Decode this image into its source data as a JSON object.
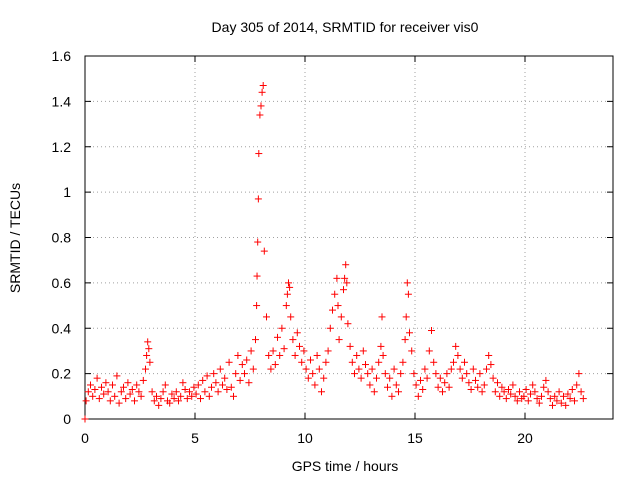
{
  "chart_data": {
    "type": "scatter",
    "title": "Day 305 of 2014, SRMTID for receiver vis0",
    "xlabel": "GPS time / hours",
    "ylabel": "SRMTID / TECUs",
    "xlim": [
      0,
      24
    ],
    "ylim": [
      0,
      1.6
    ],
    "xticks": [
      0,
      5,
      10,
      15,
      20
    ],
    "xtick_labels": [
      "0",
      "5",
      "10",
      "15",
      "20"
    ],
    "yticks": [
      0,
      0.2,
      0.4,
      0.6,
      0.8,
      1.0,
      1.2,
      1.4,
      1.6
    ],
    "ytick_labels": [
      "0",
      "0.2",
      "0.4",
      "0.6",
      "0.8",
      "1",
      "1.2",
      "1.4",
      "1.6"
    ],
    "grid": true,
    "marker": "+",
    "marker_color": "#ff0000",
    "series": [
      {
        "name": "SRMTID",
        "x": [
          0.0,
          0.05,
          0.15,
          0.25,
          0.35,
          0.45,
          0.55,
          0.65,
          0.75,
          0.85,
          0.95,
          1.05,
          1.15,
          1.25,
          1.35,
          1.45,
          1.55,
          1.65,
          1.75,
          1.85,
          1.95,
          2.05,
          2.15,
          2.25,
          2.35,
          2.45,
          2.55,
          2.65,
          2.75,
          2.8,
          2.85,
          2.9,
          2.95,
          3.05,
          3.15,
          3.25,
          3.35,
          3.45,
          3.55,
          3.65,
          3.75,
          3.85,
          3.95,
          4.05,
          4.15,
          4.25,
          4.35,
          4.45,
          4.55,
          4.65,
          4.75,
          4.85,
          4.95,
          5.05,
          5.15,
          5.25,
          5.35,
          5.45,
          5.55,
          5.65,
          5.75,
          5.85,
          5.95,
          6.05,
          6.15,
          6.25,
          6.35,
          6.45,
          6.55,
          6.65,
          6.75,
          6.85,
          6.95,
          7.05,
          7.15,
          7.25,
          7.35,
          7.45,
          7.55,
          7.65,
          7.75,
          7.8,
          7.82,
          7.85,
          7.88,
          7.9,
          7.95,
          8.0,
          8.05,
          8.1,
          8.15,
          8.25,
          8.35,
          8.45,
          8.55,
          8.65,
          8.75,
          8.85,
          8.95,
          9.05,
          9.15,
          9.2,
          9.25,
          9.3,
          9.35,
          9.45,
          9.55,
          9.65,
          9.75,
          9.85,
          9.95,
          10.05,
          10.15,
          10.25,
          10.35,
          10.45,
          10.55,
          10.65,
          10.75,
          10.85,
          10.95,
          11.05,
          11.15,
          11.25,
          11.35,
          11.45,
          11.5,
          11.55,
          11.65,
          11.75,
          11.8,
          11.85,
          11.9,
          11.95,
          12.05,
          12.15,
          12.25,
          12.35,
          12.45,
          12.55,
          12.65,
          12.75,
          12.85,
          12.95,
          13.05,
          13.15,
          13.25,
          13.35,
          13.45,
          13.5,
          13.55,
          13.65,
          13.75,
          13.85,
          13.95,
          14.05,
          14.15,
          14.25,
          14.35,
          14.45,
          14.55,
          14.6,
          14.65,
          14.7,
          14.75,
          14.85,
          14.95,
          15.05,
          15.15,
          15.25,
          15.35,
          15.45,
          15.55,
          15.65,
          15.75,
          15.85,
          15.95,
          16.05,
          16.15,
          16.25,
          16.35,
          16.45,
          16.55,
          16.65,
          16.75,
          16.85,
          16.95,
          17.05,
          17.15,
          17.25,
          17.35,
          17.45,
          17.55,
          17.65,
          17.75,
          17.85,
          17.95,
          18.05,
          18.15,
          18.25,
          18.35,
          18.45,
          18.55,
          18.65,
          18.75,
          18.85,
          18.95,
          19.05,
          19.15,
          19.25,
          19.35,
          19.45,
          19.55,
          19.65,
          19.75,
          19.85,
          19.95,
          20.05,
          20.15,
          20.25,
          20.35,
          20.45,
          20.55,
          20.65,
          20.75,
          20.85,
          20.95,
          21.05,
          21.15,
          21.25,
          21.35,
          21.45,
          21.55,
          21.65,
          21.75,
          21.85,
          21.95,
          22.05,
          22.15,
          22.25,
          22.35,
          22.45,
          22.55,
          22.65
        ],
        "y": [
          0.0,
          0.08,
          0.12,
          0.15,
          0.1,
          0.13,
          0.18,
          0.09,
          0.14,
          0.11,
          0.16,
          0.12,
          0.08,
          0.15,
          0.1,
          0.19,
          0.07,
          0.12,
          0.14,
          0.09,
          0.16,
          0.11,
          0.13,
          0.08,
          0.15,
          0.12,
          0.1,
          0.17,
          0.22,
          0.28,
          0.34,
          0.31,
          0.25,
          0.12,
          0.08,
          0.1,
          0.06,
          0.09,
          0.12,
          0.15,
          0.08,
          0.07,
          0.11,
          0.09,
          0.12,
          0.08,
          0.1,
          0.16,
          0.13,
          0.09,
          0.12,
          0.1,
          0.14,
          0.11,
          0.15,
          0.09,
          0.17,
          0.12,
          0.19,
          0.1,
          0.14,
          0.2,
          0.16,
          0.12,
          0.22,
          0.15,
          0.18,
          0.13,
          0.25,
          0.14,
          0.1,
          0.2,
          0.28,
          0.17,
          0.24,
          0.2,
          0.26,
          0.16,
          0.3,
          0.22,
          0.35,
          0.5,
          0.63,
          0.78,
          0.97,
          1.17,
          1.34,
          1.38,
          1.44,
          1.47,
          0.74,
          0.45,
          0.28,
          0.22,
          0.3,
          0.24,
          0.36,
          0.28,
          0.4,
          0.31,
          0.5,
          0.55,
          0.6,
          0.58,
          0.45,
          0.35,
          0.28,
          0.38,
          0.32,
          0.25,
          0.3,
          0.22,
          0.18,
          0.26,
          0.2,
          0.15,
          0.28,
          0.22,
          0.12,
          0.18,
          0.25,
          0.3,
          0.4,
          0.48,
          0.55,
          0.62,
          0.5,
          0.35,
          0.45,
          0.57,
          0.62,
          0.68,
          0.6,
          0.42,
          0.32,
          0.25,
          0.2,
          0.28,
          0.22,
          0.18,
          0.3,
          0.24,
          0.2,
          0.15,
          0.22,
          0.12,
          0.18,
          0.25,
          0.32,
          0.45,
          0.28,
          0.2,
          0.14,
          0.18,
          0.1,
          0.22,
          0.15,
          0.12,
          0.2,
          0.25,
          0.35,
          0.45,
          0.6,
          0.55,
          0.38,
          0.3,
          0.2,
          0.15,
          0.1,
          0.17,
          0.13,
          0.22,
          0.18,
          0.3,
          0.39,
          0.25,
          0.2,
          0.14,
          0.18,
          0.12,
          0.16,
          0.2,
          0.14,
          0.22,
          0.25,
          0.32,
          0.28,
          0.22,
          0.18,
          0.25,
          0.2,
          0.16,
          0.13,
          0.22,
          0.17,
          0.14,
          0.2,
          0.12,
          0.15,
          0.22,
          0.28,
          0.24,
          0.18,
          0.12,
          0.16,
          0.1,
          0.14,
          0.12,
          0.09,
          0.13,
          0.11,
          0.15,
          0.1,
          0.08,
          0.12,
          0.09,
          0.1,
          0.13,
          0.08,
          0.11,
          0.15,
          0.12,
          0.09,
          0.07,
          0.1,
          0.14,
          0.17,
          0.12,
          0.09,
          0.06,
          0.1,
          0.08,
          0.12,
          0.07,
          0.1,
          0.06,
          0.11,
          0.09,
          0.13,
          0.08,
          0.15,
          0.2,
          0.12,
          0.09
        ]
      }
    ]
  }
}
